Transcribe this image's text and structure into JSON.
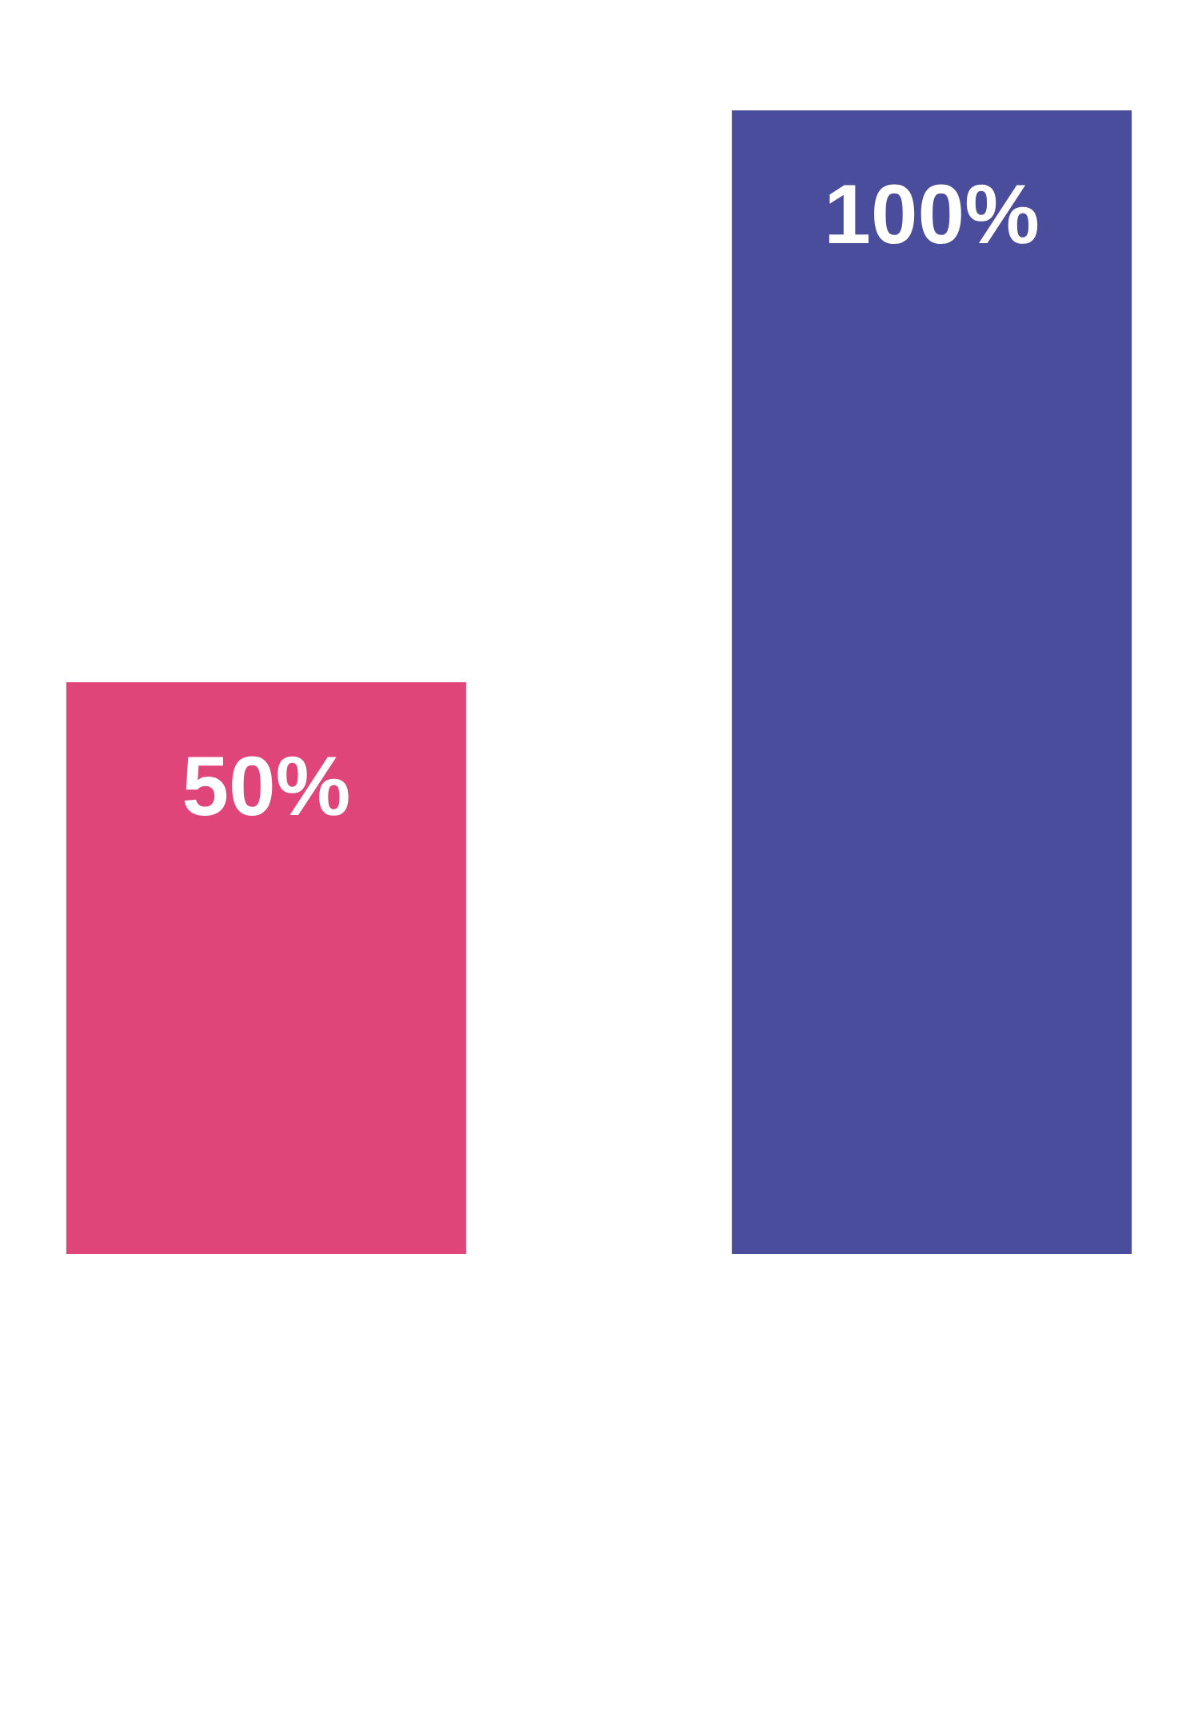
{
  "chart_data": {
    "type": "bar",
    "categories": [
      null,
      null
    ],
    "values": [
      50,
      100
    ],
    "colors": [
      "#e0457a",
      "#4a4c9c"
    ],
    "value_labels": [
      "50%",
      "100%"
    ]
  }
}
